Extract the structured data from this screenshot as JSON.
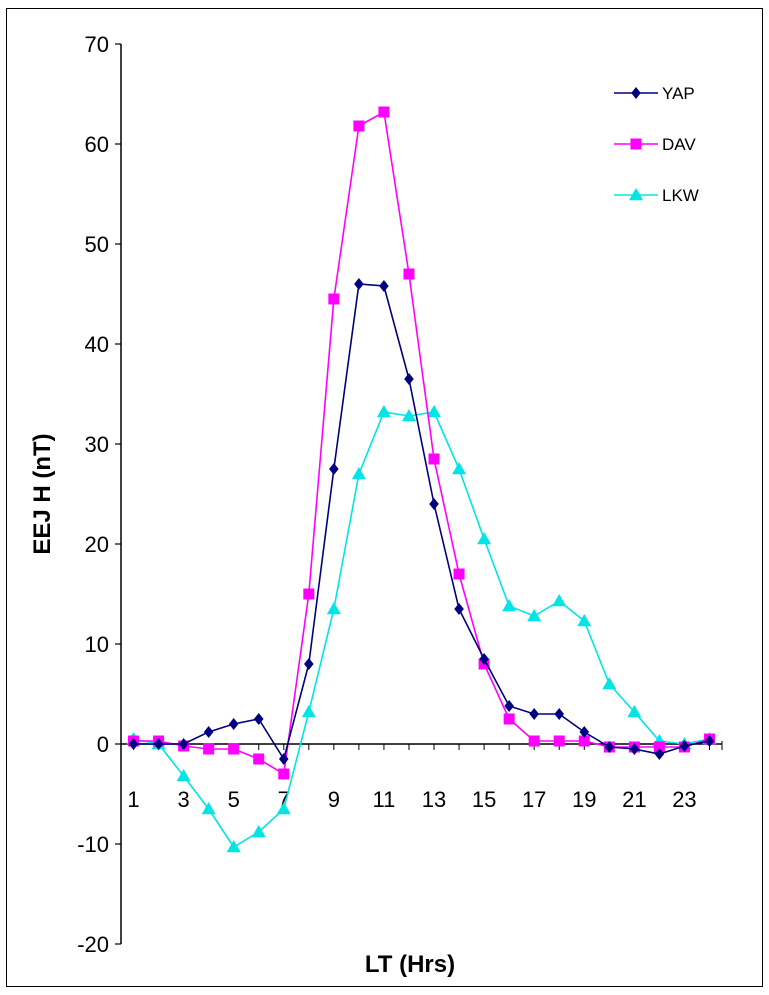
{
  "chart_data": {
    "type": "line",
    "title": "",
    "xlabel": "LT (Hrs)",
    "ylabel": "EEJ H (nT)",
    "ylim": [
      -20,
      70
    ],
    "yticks": [
      -20,
      -10,
      0,
      10,
      20,
      30,
      40,
      50,
      60,
      70
    ],
    "xlim": [
      0.5,
      24.5
    ],
    "xticks": [
      1,
      3,
      5,
      7,
      9,
      11,
      13,
      15,
      17,
      19,
      21,
      23
    ],
    "x": [
      1,
      2,
      3,
      4,
      5,
      6,
      7,
      8,
      9,
      10,
      11,
      12,
      13,
      14,
      15,
      16,
      17,
      18,
      19,
      20,
      21,
      22,
      23,
      24
    ],
    "grid": false,
    "legend_position": "top-right",
    "series": [
      {
        "name": "YAP",
        "color": "#000080",
        "marker": "diamond",
        "values": [
          0,
          0,
          0,
          1.2,
          2,
          2.5,
          -1.5,
          8,
          27.5,
          46,
          45.8,
          36.5,
          24,
          13.5,
          8.5,
          3.8,
          3,
          3,
          1.2,
          -0.3,
          -0.5,
          -1,
          -0.2,
          0.3
        ]
      },
      {
        "name": "DAV",
        "color": "#ff00ff",
        "marker": "square",
        "values": [
          0.3,
          0.3,
          -0.2,
          -0.5,
          -0.5,
          -1.5,
          -3,
          15,
          44.5,
          61.8,
          63.2,
          47,
          28.5,
          17,
          8,
          2.5,
          0.3,
          0.3,
          0.3,
          -0.3,
          -0.3,
          -0.3,
          -0.3,
          0.5
        ]
      },
      {
        "name": "LKW",
        "color": "#00e5e5",
        "marker": "triangle",
        "values": [
          0.5,
          0,
          -3.2,
          -6.5,
          -10.3,
          -8.8,
          -6.5,
          3.2,
          13.5,
          27,
          33.2,
          32.8,
          33.2,
          27.5,
          20.5,
          13.8,
          12.8,
          14.3,
          12.3,
          6,
          3.2,
          0.3,
          0,
          0.5
        ]
      }
    ]
  }
}
